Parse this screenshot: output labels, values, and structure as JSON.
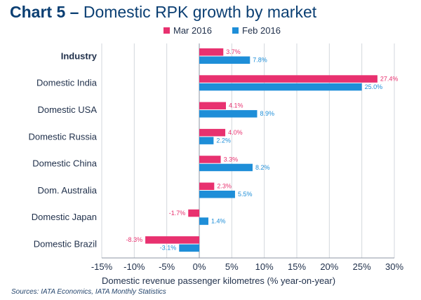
{
  "header": {
    "title_bold": "Chart 5 –",
    "title_rest": "Domestic RPK growth by market"
  },
  "footer": {
    "source": "Sources: IATA Economics, IATA Monthly Statistics"
  },
  "colors": {
    "mar": "#e8316f",
    "feb": "#1e8ed8",
    "grid": "#d3d7dc",
    "axis": "#8c96a3"
  },
  "chart_data": {
    "type": "bar",
    "orientation": "horizontal",
    "categories": [
      "Industry",
      "Domestic India",
      "Domestic USA",
      "Domestic Russia",
      "Domestic China",
      "Dom. Australia",
      "Domestic Japan",
      "Domestic Brazil"
    ],
    "series": [
      {
        "name": "Mar 2016",
        "values": [
          3.7,
          27.4,
          4.1,
          4.0,
          3.3,
          2.3,
          -1.7,
          -8.3
        ]
      },
      {
        "name": "Feb 2016",
        "values": [
          7.8,
          25.0,
          8.9,
          2.2,
          8.2,
          5.5,
          1.4,
          -3.1
        ]
      }
    ],
    "xlabel": "Domestic revenue passenger kilometres (% year-on-year)",
    "xlim": [
      -15,
      30
    ],
    "xticks": [
      -15,
      -10,
      -5,
      0,
      5,
      10,
      15,
      20,
      25,
      30
    ],
    "tick_suffix": "%",
    "grid": true,
    "legend": "top"
  }
}
